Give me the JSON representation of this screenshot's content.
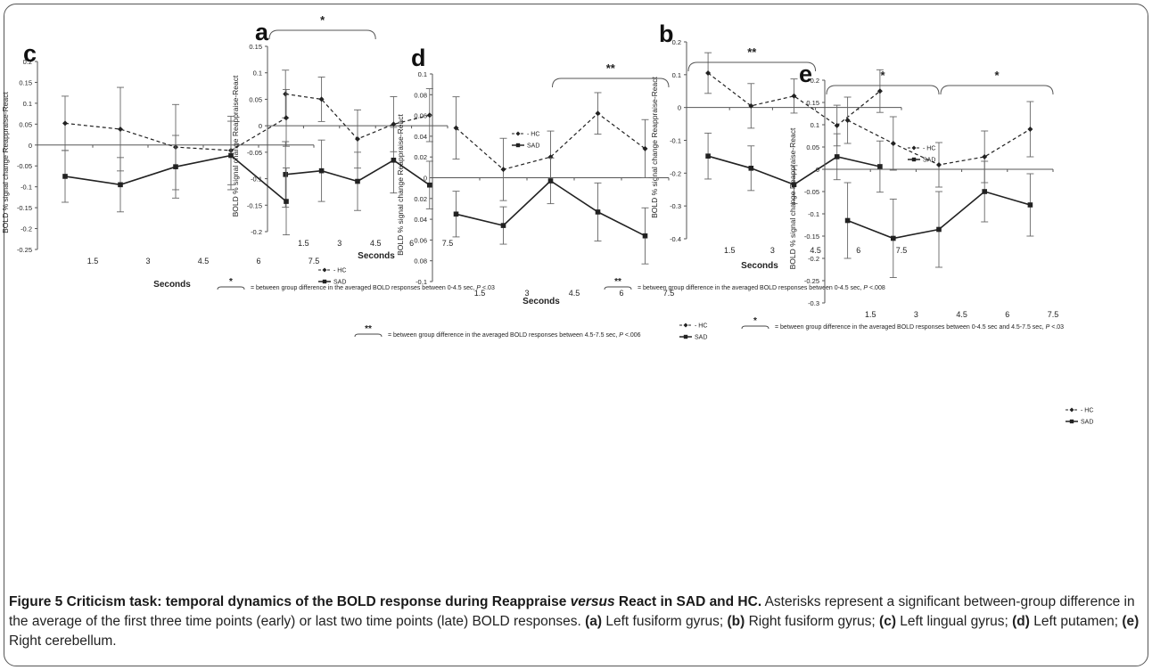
{
  "figure": {
    "caption_title": "Figure 5 Criticism task: temporal dynamics of the BOLD response during Reappraise versus React in SAD and HC.",
    "caption_title_pre": "Figure 5 Criticism task: temporal dynamics of the BOLD response during Reappraise ",
    "caption_title_em": "versus",
    "caption_title_post": " React in SAD and HC.",
    "caption_body": " Asterisks represent a significant between-group difference in the average of the first three time points (early) or last two time points (late) BOLD responses. ",
    "caption_panels": [
      {
        "tag": "(a)",
        "text": " Left fusiform gyrus; "
      },
      {
        "tag": "(b)",
        "text": " Right fusiform gyrus; "
      },
      {
        "tag": "(c)",
        "text": " Left lingual gyrus; "
      },
      {
        "tag": "(d)",
        "text": " Left putamen; "
      },
      {
        "tag": "(e)",
        "text": " Right cerebellum."
      }
    ]
  },
  "chart_data": [
    {
      "panel": "a",
      "type": "line",
      "xlabel": "Seconds",
      "ylabel": "BOLD % signal change Reappraise-React",
      "xticks": [
        "1.5",
        "3",
        "4.5",
        "6",
        "7.5"
      ],
      "yticks": [
        "0.15",
        "0.1",
        "0.05",
        "0",
        "-0.05",
        "-0.1",
        "-0.15",
        "-0.2"
      ],
      "ylim": [
        -0.2,
        0.15
      ],
      "x": [
        0.75,
        2.25,
        3.75,
        5.25,
        6.75
      ],
      "series": [
        {
          "name": "HC",
          "style": "dashed",
          "marker": "diamond",
          "values": [
            0.06,
            0.05,
            -0.025,
            0.003,
            0.02
          ],
          "err": [
            0.045,
            0.042,
            0.055,
            0.052,
            0.05
          ]
        },
        {
          "name": "SAD",
          "style": "solid",
          "marker": "square",
          "values": [
            -0.092,
            -0.085,
            -0.105,
            -0.065,
            -0.112
          ],
          "err": [
            0.062,
            0.058,
            0.055,
            0.062,
            0.045
          ]
        }
      ],
      "legend": [
        "- HC",
        "SAD"
      ],
      "brackets": [
        {
          "from": 0,
          "to": 4.5,
          "label": "*"
        }
      ],
      "footnote_mark": "*",
      "footnote_pre": "= between group difference in the averaged BOLD responses between 0-4.5 sec, ",
      "footnote_p": "P",
      "footnote_post": " <.03"
    },
    {
      "panel": "b",
      "type": "line",
      "xlabel": "Seconds",
      "ylabel": "BOLD % signal change Reappraise-React",
      "xticks": [
        "1.5",
        "3",
        "4.5",
        "6",
        "7.5"
      ],
      "yticks": [
        "0.2",
        "0.1",
        "0",
        "-0.1",
        "-0.2",
        "-0.3",
        "-0.4"
      ],
      "ylim": [
        -0.4,
        0.2
      ],
      "x": [
        0.75,
        2.25,
        3.75,
        5.25,
        6.75
      ],
      "series": [
        {
          "name": "HC",
          "style": "dashed",
          "marker": "diamond",
          "values": [
            0.105,
            0.005,
            0.035,
            -0.055,
            0.05
          ],
          "err": [
            0.062,
            0.068,
            0.052,
            0.062,
            0.065
          ]
        },
        {
          "name": "SAD",
          "style": "solid",
          "marker": "square",
          "values": [
            -0.148,
            -0.185,
            -0.235,
            -0.15,
            -0.18
          ],
          "err": [
            0.07,
            0.068,
            0.058,
            0.07,
            0.078
          ]
        }
      ],
      "legend": [
        "- HC",
        "SAD"
      ],
      "brackets": [
        {
          "from": 0,
          "to": 4.5,
          "label": "**"
        }
      ],
      "footnote_mark": "**",
      "footnote_pre": "= between group difference in the averaged BOLD responses between 0-4.5 sec, ",
      "footnote_p": "P",
      "footnote_post": " <.008"
    },
    {
      "panel": "c",
      "type": "line",
      "xlabel": "Seconds",
      "ylabel": "BOLD % signal change Reappraise-React",
      "xticks": [
        "1.5",
        "3",
        "4.5",
        "6",
        "7.5"
      ],
      "yticks": [
        "0.2",
        "0.15",
        "0.1",
        "0.05",
        "0",
        "-0.05",
        "-0.1",
        "-0.15",
        "-0.2",
        "-0.25"
      ],
      "ylim": [
        -0.25,
        0.2
      ],
      "x": [
        0.75,
        2.25,
        3.75,
        5.25,
        6.75
      ],
      "series": [
        {
          "name": "HC",
          "style": "dashed",
          "marker": "diamond",
          "values": [
            0.052,
            0.038,
            -0.005,
            -0.013,
            0.065
          ],
          "err": [
            0.065,
            0.1,
            0.102,
            0.082,
            0.068
          ]
        },
        {
          "name": "SAD",
          "style": "solid",
          "marker": "square",
          "values": [
            -0.075,
            -0.095,
            -0.052,
            -0.025,
            -0.135
          ],
          "err": [
            0.062,
            0.065,
            0.075,
            0.082,
            0.08
          ]
        }
      ],
      "legend": [
        "- HC",
        "SAD"
      ],
      "brackets": []
    },
    {
      "panel": "d",
      "type": "line",
      "xlabel": "Seconds",
      "ylabel": "BOLD % signal change Reappraise-React",
      "xticks": [
        "1.5",
        "3",
        "4.5",
        "6",
        "7.5"
      ],
      "yticks": [
        "0.1",
        "0.08",
        "0.06",
        "0.04",
        "0.02",
        "0",
        "0.02",
        "0.04",
        "0.06",
        "0.08",
        "-0.1"
      ],
      "ylim": [
        -0.1,
        0.1
      ],
      "x": [
        0.75,
        2.25,
        3.75,
        5.25,
        6.75
      ],
      "series": [
        {
          "name": "HC",
          "style": "dashed",
          "marker": "diamond",
          "values": [
            0.048,
            0.008,
            0.02,
            0.062,
            0.028
          ],
          "err": [
            0.03,
            0.03,
            0.025,
            0.02,
            0.028
          ]
        },
        {
          "name": "SAD",
          "style": "solid",
          "marker": "square",
          "values": [
            -0.035,
            -0.046,
            -0.003,
            -0.033,
            -0.056
          ],
          "err": [
            0.022,
            0.018,
            0.022,
            0.028,
            0.027
          ]
        }
      ],
      "legend": [
        "- HC",
        "SAD"
      ],
      "brackets": [
        {
          "from": 3.75,
          "to": 7.5,
          "label": "**"
        }
      ],
      "footnote_mark": "**",
      "footnote_pre": "= between group difference in the averaged BOLD responses between 4.5-7.5 sec, ",
      "footnote_p": "P",
      "footnote_post": " <.006"
    },
    {
      "panel": "e",
      "type": "line",
      "xlabel": "",
      "ylabel": "BOLD % signal change Reappraise-React",
      "xticks": [
        "1.5",
        "3",
        "4.5",
        "6",
        "7.5"
      ],
      "yticks": [
        "0.2",
        "0.15",
        "0.1",
        "0.05",
        "0",
        "-0.05",
        "-0.1",
        "-0.15",
        "-0.2",
        "-0.25",
        "-0.3"
      ],
      "ylim": [
        -0.3,
        0.2
      ],
      "x": [
        0.75,
        2.25,
        3.75,
        5.25,
        6.75
      ],
      "series": [
        {
          "name": "HC",
          "style": "dashed",
          "marker": "diamond",
          "values": [
            0.11,
            0.058,
            0.01,
            0.028,
            0.09
          ],
          "err": [
            0.052,
            0.06,
            0.05,
            0.058,
            0.062
          ]
        },
        {
          "name": "SAD",
          "style": "solid",
          "marker": "square",
          "values": [
            -0.115,
            -0.155,
            -0.135,
            -0.05,
            -0.08
          ],
          "err": [
            0.085,
            0.088,
            0.085,
            0.068,
            0.07
          ]
        }
      ],
      "legend": [
        "- HC",
        "SAD"
      ],
      "brackets": [
        {
          "from": 0,
          "to": 3.75,
          "label": "*"
        },
        {
          "from": 3.75,
          "to": 7.5,
          "label": "*"
        }
      ],
      "footnote_mark": "*",
      "footnote_pre": "= between group difference in the averaged BOLD responses between 0-4.5 sec and 4.5-7.5 sec, ",
      "footnote_p": "P",
      "footnote_post": " <.03"
    }
  ]
}
